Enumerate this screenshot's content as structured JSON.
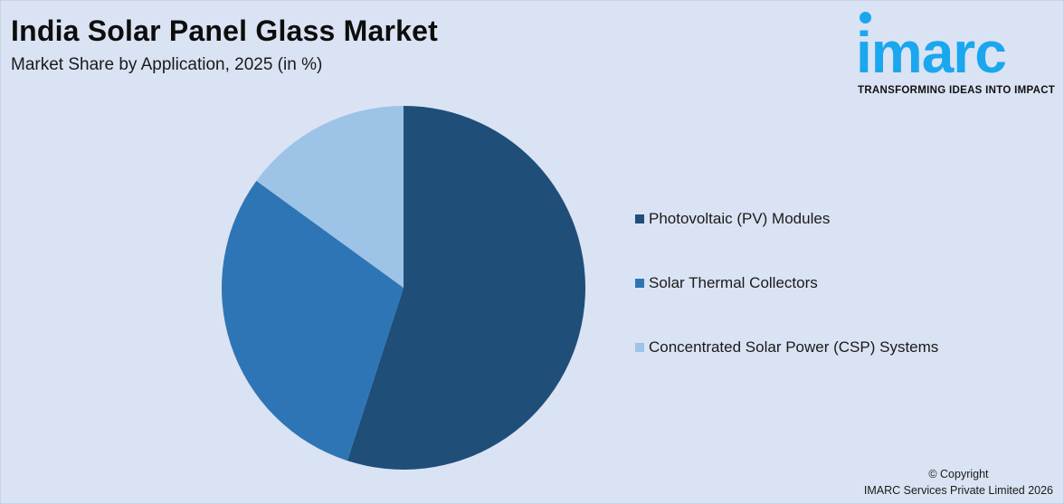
{
  "header": {
    "title": "India Solar Panel Glass Market",
    "subtitle": "Market Share by Application, 2025 (in %)"
  },
  "logo": {
    "word": "imarc",
    "tagline": "TRANSFORMING IDEAS INTO IMPACT",
    "color": "#1aa7ee"
  },
  "footer": {
    "line1": "© Copyright",
    "line2": "IMARC Services Private Limited 2026"
  },
  "legend": [
    {
      "label": "Photovoltaic (PV) Modules",
      "color": "#1f4e79"
    },
    {
      "label": "Solar Thermal Collectors",
      "color": "#2e75b6"
    },
    {
      "label": "Concentrated Solar Power (CSP) Systems",
      "color": "#9dc3e6"
    }
  ],
  "chart_data": {
    "type": "pie",
    "title": "India Solar Panel Glass Market",
    "subtitle": "Market Share by Application, 2025 (in %)",
    "categories": [
      "Photovoltaic (PV) Modules",
      "Solar Thermal Collectors",
      "Concentrated Solar Power (CSP) Systems"
    ],
    "values": [
      55,
      30,
      15
    ],
    "colors": [
      "#1f4e79",
      "#2e75b6",
      "#9dc3e6"
    ],
    "start_angle": "12 o'clock, clockwise",
    "data_labels": false,
    "legend_position": "right"
  }
}
